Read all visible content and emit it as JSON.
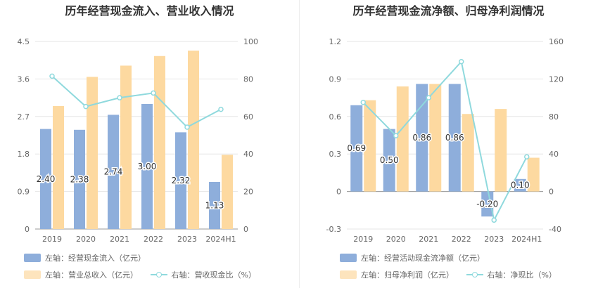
{
  "chart_data": [
    {
      "type": "bar",
      "title": "历年经营现金流入、营业收入情况",
      "categories": [
        "2019",
        "2020",
        "2021",
        "2022",
        "2023",
        "2024H1"
      ],
      "left_axis": {
        "ylim": [
          0,
          4.5
        ],
        "ticks": [
          "0",
          "0.9",
          "1.8",
          "2.7",
          "3.6",
          "4.5"
        ]
      },
      "right_axis": {
        "ylim": [
          0,
          100
        ],
        "ticks": [
          "0",
          "20",
          "40",
          "60",
          "80",
          "100"
        ]
      },
      "series": [
        {
          "name": "左轴：经营现金流入（亿元）",
          "kind": "bar",
          "axis": "left",
          "color": "#8eaedb",
          "values": [
            2.4,
            2.38,
            2.74,
            3.0,
            2.32,
            1.13
          ],
          "labels": [
            "2.40",
            "2.38",
            "2.74",
            "3.00",
            "2.32",
            "1.13"
          ]
        },
        {
          "name": "左轴：营业总收入（亿元）",
          "kind": "bar",
          "axis": "left",
          "color": "#fdd9a0",
          "values": [
            2.95,
            3.65,
            3.92,
            4.15,
            4.28,
            1.78
          ]
        },
        {
          "name": "右轴：营收现金比（%）",
          "kind": "line",
          "axis": "right",
          "color": "#8fd9dd",
          "values": [
            81.5,
            65.3,
            70.0,
            72.5,
            54.3,
            63.8
          ]
        }
      ],
      "grid": true
    },
    {
      "type": "bar",
      "title": "历年经营现金流净额、归母净利润情况",
      "categories": [
        "2019",
        "2020",
        "2021",
        "2022",
        "2023",
        "2024H1"
      ],
      "left_axis": {
        "ylim": [
          -0.3,
          1.2
        ],
        "ticks": [
          "-0.3",
          "0",
          "0.3",
          "0.6",
          "0.9",
          "1.2"
        ]
      },
      "right_axis": {
        "ylim": [
          -40,
          160
        ],
        "ticks": [
          "-40",
          "0",
          "40",
          "80",
          "120",
          "160"
        ]
      },
      "series": [
        {
          "name": "左轴：经营活动现金流净额（亿元）",
          "kind": "bar",
          "axis": "left",
          "color": "#8eaedb",
          "values": [
            0.69,
            0.5,
            0.86,
            0.86,
            -0.2,
            0.1
          ],
          "labels": [
            "0.69",
            "0.50",
            "0.86",
            "0.86",
            "-0.20",
            "0.10"
          ]
        },
        {
          "name": "左轴：归母净利润（亿元）",
          "kind": "bar",
          "axis": "left",
          "color": "#fdd9a0",
          "values": [
            0.73,
            0.84,
            0.86,
            0.62,
            0.66,
            0.27
          ]
        },
        {
          "name": "右轴：净现比（%）",
          "kind": "line",
          "axis": "right",
          "color": "#8fd9dd",
          "values": [
            95.0,
            59.5,
            100.0,
            138.5,
            -30.5,
            37.0
          ]
        }
      ],
      "grid": true
    }
  ]
}
